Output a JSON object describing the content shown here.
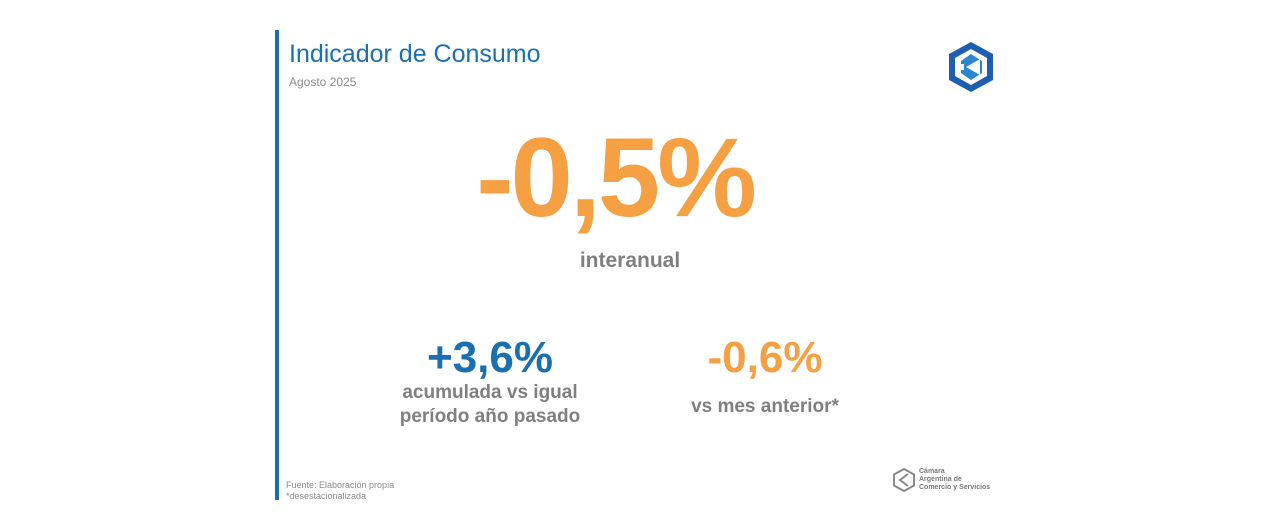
{
  "header": {
    "title": "Indicador de Consumo",
    "subtitle": "Agosto 2025"
  },
  "main": {
    "value": "-0,5%",
    "label": "interanual"
  },
  "stats": [
    {
      "value": "+3,6%",
      "label_line1": "acumulada vs igual",
      "label_line2": "período año pasado",
      "color": "#1a6fb0"
    },
    {
      "value": "-0,6%",
      "label_line1": "vs mes anterior*",
      "color": "#f5a043"
    }
  ],
  "footer": {
    "source": "Fuente: Elaboración propia",
    "note": "*desestacionalizada"
  },
  "brand": {
    "line1": "Cámara",
    "line2": "Argentina de",
    "line3": "Comercio y Servicios"
  },
  "colors": {
    "accent_blue": "#1a6fb0",
    "accent_orange": "#f5a043"
  }
}
